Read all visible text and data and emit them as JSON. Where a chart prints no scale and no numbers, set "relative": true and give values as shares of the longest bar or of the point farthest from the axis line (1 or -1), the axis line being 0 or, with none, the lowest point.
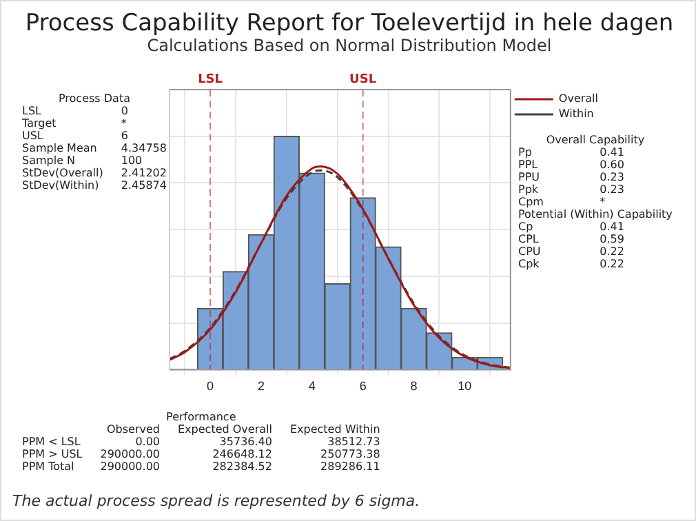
{
  "chart_data": {
    "type": "histogram",
    "title": "Process Capability Report for Toelevertijd in hele dagen",
    "subtitle": "Calculations Based on Normal Distribution Model",
    "relative": true,
    "bins": [
      -0.5,
      0.5,
      1.5,
      2.5,
      3.5,
      4.5,
      5.5,
      6.5,
      7.5,
      8.5,
      9.5,
      10.5,
      11.5
    ],
    "values": [
      0.263,
      0.421,
      0.579,
      1,
      0.842,
      0.368,
      0.737,
      0.526,
      0.263,
      0.158,
      0.053,
      0.053
    ],
    "color": "#7ba3d8",
    "series": [
      {
        "name": "Overall",
        "type": "line",
        "color": "#a01818",
        "line_style": "solid",
        "x": [
          -1.6,
          -1,
          0,
          1,
          2,
          3,
          4,
          4.35,
          5,
          6,
          7,
          8,
          9,
          10,
          11,
          11.8
        ],
        "values": [
          0.042,
          0.075,
          0.172,
          0.332,
          0.542,
          0.745,
          0.862,
          0.871,
          0.839,
          0.688,
          0.475,
          0.277,
          0.136,
          0.056,
          0.019,
          0.007
        ]
      },
      {
        "name": "Within",
        "type": "line",
        "color": "#404040",
        "line_style": "dashed",
        "x": [
          -1.6,
          -1,
          0,
          1,
          2,
          3,
          4,
          4.35,
          5,
          6,
          7,
          8,
          9,
          10,
          11,
          11.8
        ],
        "values": [
          0.046,
          0.08,
          0.179,
          0.338,
          0.542,
          0.735,
          0.846,
          0.854,
          0.825,
          0.682,
          0.477,
          0.284,
          0.143,
          0.061,
          0.022,
          0.009
        ]
      }
    ],
    "xlim": [
      -1.6,
      11.8
    ],
    "xticks": [
      0,
      2,
      4,
      6,
      8,
      10
    ],
    "grid": true,
    "legend": "top right",
    "marker": "none",
    "ref_lines": [
      {
        "axis": "x",
        "value": 0,
        "label": "LSL",
        "color": "#b22222",
        "line_style": "dashed"
      },
      {
        "axis": "x",
        "value": 6,
        "label": "USL",
        "color": "#b22222",
        "line_style": "dashed"
      }
    ],
    "annotations": [
      "Process Data\nLSL\t0\nTarget\t*\nUSL\t6\nSample Mean\t4.34758\nSample N\t100\nStDev(Overall)\t2.41202\nStDev(Within)\t2.45874",
      "Overall Capability\nPp\t0.41\nPPL\t0.60\nPPU\t0.23\nPpk\t0.23\nCpm\t*\nPotential (Within) Capability\nCp\t0.41\nCPL\t0.59\nCPU\t0.22\nCpk\t0.22",
      "Performance\n\tObserved\tExpected Overall\tExpected Within\nPPM < LSL\t0.00\t35736.40\t38512.73\nPPM > USL\t290000.00\t246648.12\t250773.38\nPPM Total\t290000.00\t282384.52\t289286.11",
      "The actual process spread is represented by 6 sigma."
    ]
  }
}
